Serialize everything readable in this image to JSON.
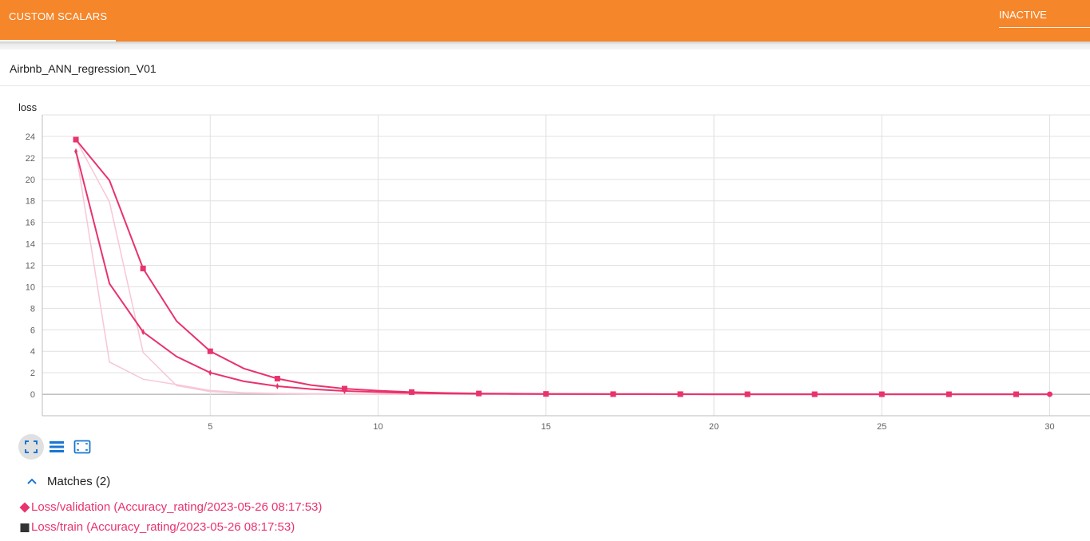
{
  "header": {
    "tab_label": "CUSTOM SCALARS",
    "status_label": "INACTIVE",
    "accent_color": "#f5862a"
  },
  "run": {
    "title": "Airbnb_ANN_regression_V01"
  },
  "toolbar": {
    "icons": [
      "fullscreen-icon",
      "list-icon",
      "fit-domain-icon"
    ]
  },
  "matches": {
    "label": "Matches (2)",
    "items": [
      {
        "label": "Loss/validation (Accuracy_rating/2023-05-26 08:17:53)",
        "marker": "diamond"
      },
      {
        "label": "Loss/train (Accuracy_rating/2023-05-26 08:17:53)",
        "marker": "square"
      }
    ]
  },
  "chart_data": {
    "type": "line",
    "title": "loss",
    "xlabel": "",
    "ylabel": "",
    "xlim": [
      0,
      31.2
    ],
    "ylim": [
      -2,
      26
    ],
    "x_ticks": [
      5,
      10,
      15,
      20,
      25,
      30
    ],
    "y_ticks": [
      0,
      2,
      4,
      6,
      8,
      10,
      12,
      14,
      16,
      18,
      20,
      22,
      24
    ],
    "grid": true,
    "line_color": "#e8336d",
    "raw_color": "#f8c7d6",
    "series": [
      {
        "name": "Loss/validation (Accuracy_rating/2023-05-26 08:17:53)",
        "marker": "diamond",
        "x": [
          1,
          2,
          3,
          4,
          5,
          6,
          7,
          8,
          9,
          10,
          11,
          12,
          13,
          14,
          15,
          16,
          17,
          18,
          19,
          20,
          21,
          22,
          23,
          24,
          25,
          26,
          27,
          28,
          29,
          30
        ],
        "smoothed": [
          22.6,
          10.3,
          5.8,
          3.5,
          2.0,
          1.2,
          0.75,
          0.48,
          0.3,
          0.2,
          0.12,
          0.07,
          0.04,
          0.03,
          0.02,
          0.01,
          0.01,
          0.01,
          0,
          0,
          0,
          0,
          0,
          0,
          0,
          0,
          0,
          0,
          0,
          0
        ],
        "raw": [
          22.6,
          3.0,
          1.4,
          0.9,
          0.35,
          0.15,
          0.08,
          0.05,
          0.03,
          0.02,
          0.01,
          0.01,
          0,
          0,
          0,
          0,
          0,
          0,
          0,
          0,
          0,
          0,
          0,
          0,
          0,
          0,
          0,
          0,
          0,
          0
        ]
      },
      {
        "name": "Loss/train (Accuracy_rating/2023-05-26 08:17:53)",
        "marker": "square",
        "x": [
          1,
          2,
          3,
          4,
          5,
          6,
          7,
          8,
          9,
          10,
          11,
          12,
          13,
          14,
          15,
          16,
          17,
          18,
          19,
          20,
          21,
          22,
          23,
          24,
          25,
          26,
          27,
          28,
          29,
          30
        ],
        "smoothed": [
          23.7,
          19.9,
          11.7,
          6.8,
          4.0,
          2.4,
          1.45,
          0.85,
          0.52,
          0.33,
          0.2,
          0.12,
          0.07,
          0.05,
          0.03,
          0.02,
          0.01,
          0.01,
          0.01,
          0,
          0,
          0,
          0,
          0,
          0,
          0,
          0,
          0,
          0,
          0
        ],
        "raw": [
          23.7,
          17.9,
          3.9,
          0.8,
          0.25,
          0.1,
          0.05,
          0.03,
          0.02,
          0.01,
          0.01,
          0,
          0,
          0,
          0,
          0,
          0,
          0,
          0,
          0,
          0,
          0,
          0,
          0,
          0,
          0,
          0,
          0,
          0,
          0
        ]
      }
    ]
  }
}
